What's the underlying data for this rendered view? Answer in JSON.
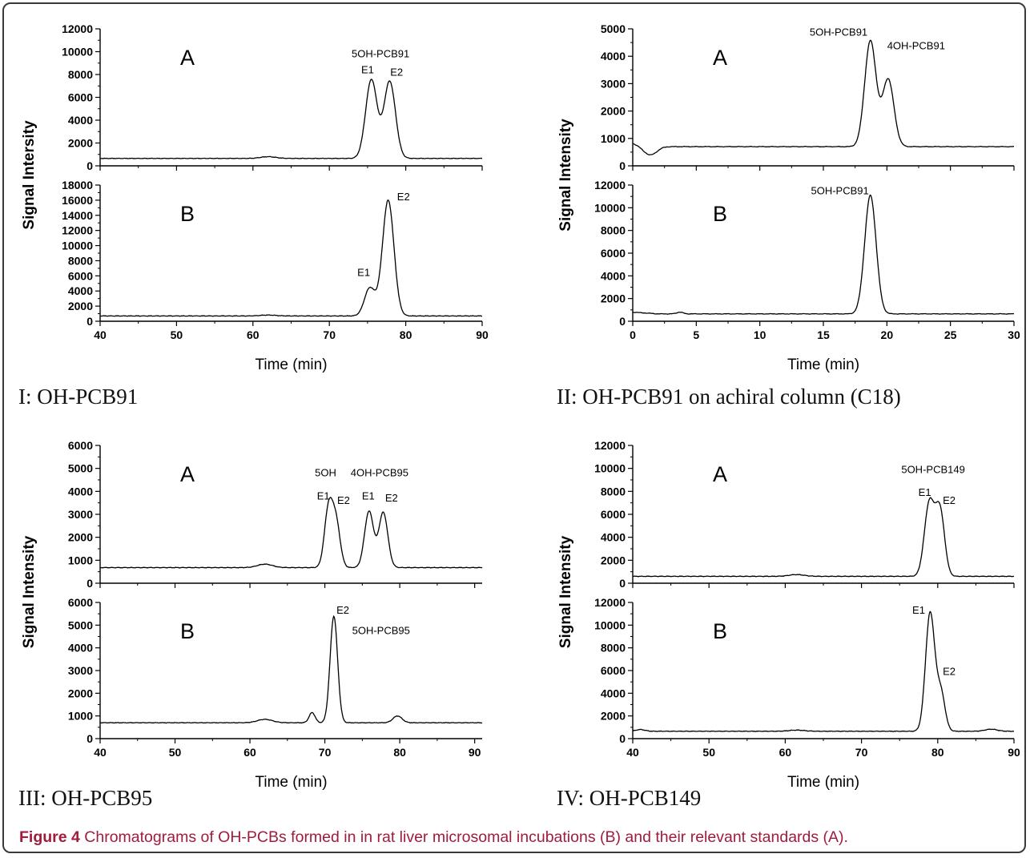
{
  "figure": {
    "caption_label": "Figure 4",
    "caption_text": "Chromatograms of OH-PCBs formed in in rat liver microsomal incubations (B) and their relevant standards (A)."
  },
  "chart_data": [
    {
      "type": "line",
      "caption": "I: OH-PCB91",
      "xlabel": "Time (min)",
      "ylabel": "Signal Intersity",
      "xlim": [
        40,
        90
      ],
      "xticks": [
        40,
        50,
        60,
        70,
        80,
        90
      ],
      "subplots": [
        {
          "label": "A",
          "ylim": [
            0,
            12000
          ],
          "yticks": [
            0,
            2000,
            4000,
            6000,
            8000,
            10000,
            12000
          ],
          "baseline": 650,
          "peaks": [
            {
              "x": 62,
              "height": 150,
              "width": 1.0
            },
            {
              "x": 75.5,
              "height": 6900,
              "width": 0.75
            },
            {
              "x": 77.9,
              "height": 6750,
              "width": 0.75
            }
          ],
          "annotations": [
            {
              "text": "5OH-PCB91",
              "x": 76.7,
              "y": 9500
            },
            {
              "text": "E1",
              "x": 75.0,
              "y": 8100
            },
            {
              "text": "E2",
              "x": 78.8,
              "y": 7900
            }
          ]
        },
        {
          "label": "B",
          "ylim": [
            0,
            18000
          ],
          "yticks": [
            0,
            2000,
            4000,
            6000,
            8000,
            10000,
            12000,
            14000,
            16000,
            18000
          ],
          "baseline": 700,
          "peaks": [
            {
              "x": 62,
              "height": 120,
              "width": 1.0
            },
            {
              "x": 75.3,
              "height": 3700,
              "width": 0.7
            },
            {
              "x": 77.7,
              "height": 15300,
              "width": 0.75
            }
          ],
          "annotations": [
            {
              "text": "E1",
              "x": 74.5,
              "y": 6000
            },
            {
              "text": "E2",
              "x": 79.7,
              "y": 16000
            }
          ]
        }
      ]
    },
    {
      "type": "line",
      "caption": "II: OH-PCB91 on achiral column (C18)",
      "xlabel": "Time (min)",
      "ylabel": "Signal Intensity",
      "xlim": [
        0,
        30
      ],
      "xticks": [
        0,
        5,
        10,
        15,
        20,
        25,
        30
      ],
      "subplots": [
        {
          "label": "A",
          "ylim": [
            0,
            5000
          ],
          "yticks": [
            0,
            1000,
            2000,
            3000,
            4000,
            5000
          ],
          "baseline": 700,
          "peaks": [
            {
              "x": 18.7,
              "height": 3860,
              "width": 0.45
            },
            {
              "x": 20.1,
              "height": 2460,
              "width": 0.45
            }
          ],
          "annotations": [
            {
              "text": "5OH-PCB91",
              "x": 16.2,
              "y": 4750
            },
            {
              "text": "4OH-PCB91",
              "x": 22.3,
              "y": 4250
            }
          ]
        },
        {
          "label": "B",
          "ylim": [
            0,
            12000
          ],
          "yticks": [
            0,
            2000,
            4000,
            6000,
            8000,
            10000,
            12000
          ],
          "baseline": 650,
          "peaks": [
            {
              "x": 3.7,
              "height": 150,
              "width": 0.25
            },
            {
              "x": 18.7,
              "height": 10450,
              "width": 0.45
            }
          ],
          "annotations": [
            {
              "text": "5OH-PCB91",
              "x": 16.3,
              "y": 11200
            }
          ]
        }
      ]
    },
    {
      "type": "line",
      "caption": "III: OH-PCB95",
      "xlabel": "Time (min)",
      "ylabel": "Signal Intensity",
      "xlim": [
        40,
        91
      ],
      "xticks": [
        40,
        50,
        60,
        70,
        80,
        90
      ],
      "subplots": [
        {
          "label": "A",
          "ylim": [
            0,
            6000
          ],
          "yticks": [
            0,
            1000,
            2000,
            3000,
            4000,
            5000,
            6000
          ],
          "baseline": 680,
          "peaks": [
            {
              "x": 62,
              "height": 150,
              "width": 1.0
            },
            {
              "x": 70.5,
              "height": 2550,
              "width": 0.55
            },
            {
              "x": 71.5,
              "height": 1900,
              "width": 0.55
            },
            {
              "x": 75.9,
              "height": 2450,
              "width": 0.6
            },
            {
              "x": 77.8,
              "height": 2400,
              "width": 0.6
            }
          ],
          "annotations": [
            {
              "text": "5OH",
              "x": 70.1,
              "y": 4650
            },
            {
              "text": "4OH-PCB95",
              "x": 77.3,
              "y": 4650
            },
            {
              "text": "E1",
              "x": 69.8,
              "y": 3650
            },
            {
              "text": "E2",
              "x": 72.5,
              "y": 3450
            },
            {
              "text": "E1",
              "x": 75.8,
              "y": 3650
            },
            {
              "text": "E2",
              "x": 78.9,
              "y": 3550
            }
          ]
        },
        {
          "label": "B",
          "ylim": [
            0,
            6000
          ],
          "yticks": [
            0,
            1000,
            2000,
            3000,
            4000,
            5000,
            6000
          ],
          "baseline": 700,
          "peaks": [
            {
              "x": 62,
              "height": 150,
              "width": 1.0
            },
            {
              "x": 68.3,
              "height": 450,
              "width": 0.4
            },
            {
              "x": 71.2,
              "height": 4700,
              "width": 0.5
            },
            {
              "x": 79.7,
              "height": 300,
              "width": 0.6
            }
          ],
          "annotations": [
            {
              "text": "E2",
              "x": 72.4,
              "y": 5500
            },
            {
              "text": "5OH-PCB95",
              "x": 77.5,
              "y": 4600
            }
          ]
        }
      ]
    },
    {
      "type": "line",
      "caption": "IV: OH-PCB149",
      "xlabel": "Time (min)",
      "ylabel": "Signal Intensity",
      "xlim": [
        40,
        90
      ],
      "xticks": [
        40,
        50,
        60,
        70,
        80,
        90
      ],
      "subplots": [
        {
          "label": "A",
          "ylim": [
            0,
            12000
          ],
          "yticks": [
            0,
            2000,
            4000,
            6000,
            8000,
            10000,
            12000
          ],
          "baseline": 600,
          "peaks": [
            {
              "x": 61.5,
              "height": 150,
              "width": 1.0
            },
            {
              "x": 78.9,
              "height": 6350,
              "width": 0.65
            },
            {
              "x": 80.3,
              "height": 5650,
              "width": 0.6
            }
          ],
          "annotations": [
            {
              "text": "5OH-PCB149",
              "x": 79.4,
              "y": 9600
            },
            {
              "text": "E1",
              "x": 78.3,
              "y": 7600
            },
            {
              "text": "E2",
              "x": 81.5,
              "y": 6900
            }
          ]
        },
        {
          "label": "B",
          "ylim": [
            0,
            12000
          ],
          "yticks": [
            0,
            2000,
            4000,
            6000,
            8000,
            10000,
            12000
          ],
          "baseline": 650,
          "peaks": [
            {
              "x": 41,
              "height": 150,
              "width": 0.6
            },
            {
              "x": 61.5,
              "height": 100,
              "width": 1.0
            },
            {
              "x": 79.0,
              "height": 10400,
              "width": 0.6
            },
            {
              "x": 80.4,
              "height": 3400,
              "width": 0.55
            },
            {
              "x": 87,
              "height": 180,
              "width": 0.8
            }
          ],
          "annotations": [
            {
              "text": "E1",
              "x": 77.5,
              "y": 11000
            },
            {
              "text": "E2",
              "x": 81.5,
              "y": 5600
            }
          ]
        }
      ]
    }
  ]
}
